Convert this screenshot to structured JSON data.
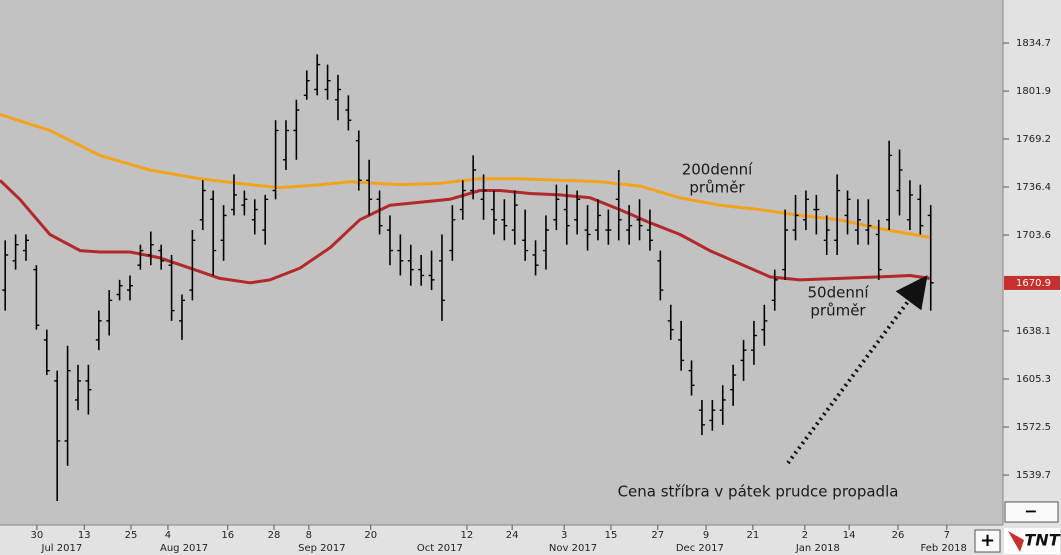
{
  "chart_data": {
    "type": "ohlc",
    "bar_color": "#000000",
    "xlim": [
      -1,
      191.9
    ],
    "ylim": [
      1505.6,
      1864.1
    ],
    "yticks": [
      1834.7,
      1801.9,
      1769.2,
      1736.4,
      1703.6,
      1638.1,
      1605.3,
      1572.5,
      1539.7
    ],
    "last_price": 1670.9,
    "last_price_color": "#c8302e",
    "xticks": [
      {
        "value": 6.1,
        "label": "30"
      },
      {
        "value": 15.2,
        "label": "13"
      },
      {
        "value": 24.2,
        "label": "25"
      },
      {
        "value": 31.3,
        "label": "4"
      },
      {
        "value": 42.8,
        "label": "16"
      },
      {
        "value": 51.7,
        "label": "28"
      },
      {
        "value": 58.4,
        "label": "8"
      },
      {
        "value": 70.3,
        "label": "20"
      },
      {
        "value": 88.8,
        "label": "12"
      },
      {
        "value": 97.5,
        "label": "24"
      },
      {
        "value": 107.5,
        "label": "3"
      },
      {
        "value": 116.5,
        "label": "15"
      },
      {
        "value": 125.5,
        "label": "27"
      },
      {
        "value": 134.8,
        "label": "9"
      },
      {
        "value": 143.8,
        "label": "21"
      },
      {
        "value": 153.8,
        "label": "2"
      },
      {
        "value": 162.3,
        "label": "14"
      },
      {
        "value": 171.7,
        "label": "26"
      },
      {
        "value": 181.1,
        "label": "7"
      }
    ],
    "xticks_months": [
      {
        "value": 10.9,
        "label": "Jul 2017"
      },
      {
        "value": 34.4,
        "label": "Aug 2017"
      },
      {
        "value": 60.9,
        "label": "Sep 2017"
      },
      {
        "value": 83.6,
        "label": "Oct 2017"
      },
      {
        "value": 109.2,
        "label": "Nov 2017"
      },
      {
        "value": 133.6,
        "label": "Dec 2017"
      },
      {
        "value": 156.3,
        "label": "Jan 2018"
      },
      {
        "value": 180.5,
        "label": "Feb 2018"
      }
    ],
    "ohlc": {
      "x": [
        0,
        2,
        4,
        6,
        8,
        10,
        12,
        14,
        16,
        18,
        20,
        22,
        24,
        26,
        28,
        30,
        32,
        34,
        36,
        38,
        40,
        42,
        44,
        46,
        48,
        50,
        52,
        54,
        56,
        58,
        60,
        62,
        64,
        66,
        68,
        70,
        72,
        74,
        76,
        78,
        80,
        82,
        84,
        86,
        88,
        90,
        92,
        94,
        96,
        98,
        100,
        102,
        104,
        106,
        108,
        110,
        112,
        114,
        116,
        118,
        120,
        122,
        124,
        126,
        128,
        130,
        132,
        134,
        136,
        138,
        140,
        142,
        144,
        146,
        148,
        150,
        152,
        154,
        156,
        158,
        160,
        162,
        164,
        166,
        168,
        170,
        172,
        174,
        176,
        178
      ],
      "open": [
        1666,
        1686,
        1693,
        1680,
        1632,
        1604,
        1563,
        1591,
        1604,
        1632,
        1645,
        1663,
        1666,
        1683,
        1690,
        1693,
        1683,
        1645,
        1666,
        1714,
        1728,
        1700,
        1721,
        1724,
        1714,
        1707,
        1734,
        1755,
        1775,
        1799,
        1803,
        1803,
        1796,
        1789,
        1768,
        1741,
        1728,
        1707,
        1693,
        1686,
        1680,
        1676,
        1686,
        1693,
        1721,
        1734,
        1728,
        1721,
        1714,
        1707,
        1700,
        1690,
        1693,
        1714,
        1721,
        1714,
        1707,
        1707,
        1707,
        1728,
        1707,
        1714,
        1707,
        1686,
        1645,
        1632,
        1611,
        1584,
        1577,
        1584,
        1598,
        1618,
        1625,
        1639,
        1659,
        1680,
        1707,
        1714,
        1721,
        1700,
        1700,
        1717,
        1707,
        1707,
        1704,
        1714,
        1734,
        1714,
        1728,
        1717
      ],
      "high": [
        1700,
        1704,
        1704,
        1683,
        1639,
        1611,
        1628,
        1615,
        1615,
        1652,
        1666,
        1673,
        1676,
        1697,
        1706,
        1697,
        1690,
        1663,
        1707,
        1741,
        1734,
        1724,
        1745,
        1734,
        1728,
        1731,
        1782,
        1782,
        1796,
        1816,
        1827,
        1820,
        1813,
        1799,
        1775,
        1755,
        1734,
        1717,
        1704,
        1697,
        1690,
        1693,
        1704,
        1724,
        1741,
        1758,
        1745,
        1734,
        1728,
        1734,
        1721,
        1700,
        1717,
        1738,
        1738,
        1734,
        1724,
        1728,
        1721,
        1748,
        1724,
        1728,
        1721,
        1693,
        1656,
        1645,
        1618,
        1591,
        1591,
        1601,
        1615,
        1632,
        1645,
        1656,
        1680,
        1721,
        1731,
        1734,
        1731,
        1717,
        1745,
        1734,
        1728,
        1728,
        1714,
        1768,
        1762,
        1741,
        1738,
        1724
      ],
      "low": [
        1652,
        1680,
        1686,
        1639,
        1608,
        1522,
        1546,
        1584,
        1581,
        1625,
        1635,
        1659,
        1659,
        1680,
        1683,
        1680,
        1645,
        1632,
        1659,
        1707,
        1676,
        1686,
        1717,
        1717,
        1704,
        1697,
        1728,
        1748,
        1755,
        1796,
        1799,
        1796,
        1782,
        1775,
        1734,
        1717,
        1704,
        1683,
        1676,
        1669,
        1669,
        1666,
        1645,
        1686,
        1714,
        1728,
        1714,
        1704,
        1700,
        1697,
        1686,
        1676,
        1680,
        1707,
        1697,
        1704,
        1693,
        1700,
        1697,
        1700,
        1697,
        1700,
        1693,
        1659,
        1632,
        1611,
        1594,
        1567,
        1570,
        1574,
        1587,
        1604,
        1615,
        1628,
        1652,
        1673,
        1700,
        1707,
        1704,
        1690,
        1690,
        1704,
        1697,
        1697,
        1673,
        1707,
        1717,
        1707,
        1704,
        1652
      ],
      "close": [
        1690,
        1697,
        1700,
        1642,
        1611,
        1563,
        1611,
        1604,
        1598,
        1645,
        1659,
        1669,
        1669,
        1693,
        1697,
        1686,
        1652,
        1659,
        1700,
        1734,
        1693,
        1717,
        1731,
        1728,
        1721,
        1728,
        1775,
        1775,
        1789,
        1809,
        1820,
        1809,
        1803,
        1782,
        1741,
        1728,
        1710,
        1693,
        1686,
        1680,
        1676,
        1673,
        1659,
        1714,
        1734,
        1748,
        1734,
        1714,
        1710,
        1724,
        1693,
        1683,
        1707,
        1728,
        1710,
        1728,
        1704,
        1717,
        1707,
        1714,
        1710,
        1710,
        1700,
        1666,
        1639,
        1618,
        1601,
        1574,
        1584,
        1591,
        1608,
        1625,
        1635,
        1645,
        1673,
        1707,
        1717,
        1728,
        1721,
        1707,
        1734,
        1728,
        1714,
        1710,
        1680,
        1758,
        1748,
        1731,
        1710,
        1671
      ]
    },
    "lines": [
      {
        "color": "#f5a21b",
        "x": [
          -1,
          8.6,
          18.2,
          27.8,
          37.5,
          47.1,
          52.8,
          60.5,
          66.3,
          75.9,
          83.6,
          91.3,
          99,
          106.7,
          114.4,
          122.1,
          129.8,
          137.5,
          145.2,
          152.8,
          160.5,
          168.2,
          177.8
        ],
        "values": [
          1786,
          1775,
          1758,
          1748,
          1742,
          1738,
          1736,
          1738,
          1740,
          1738,
          1739,
          1742,
          1742,
          1741,
          1740,
          1737,
          1729,
          1724,
          1721,
          1717,
          1714,
          1708,
          1702
        ]
      },
      {
        "color": "#b3282b",
        "x": [
          -1,
          2.8,
          8.6,
          14.4,
          18.2,
          24,
          29.8,
          35.5,
          41.3,
          47.1,
          50.9,
          56.7,
          62.5,
          68.2,
          74,
          79.8,
          85.5,
          91.3,
          95.2,
          100.9,
          106.7,
          112.5,
          118.2,
          124,
          129.8,
          135.5,
          141.3,
          147.1,
          152.8,
          160.5,
          168.2,
          174,
          177.8
        ],
        "values": [
          1741,
          1728,
          1704,
          1693,
          1692,
          1692,
          1688,
          1681,
          1674,
          1671,
          1673,
          1681,
          1695,
          1714,
          1724,
          1726,
          1728,
          1734,
          1734,
          1732,
          1731,
          1729,
          1721,
          1712,
          1704,
          1693,
          1684,
          1675,
          1673,
          1674,
          1675,
          1676,
          1674
        ]
      }
    ],
    "annotations": [
      {
        "lines": [
          "200denní",
          "průměr"
        ]
      },
      {
        "lines": [
          "50denní",
          "průměr"
        ]
      },
      {
        "lines": [
          "Cena stříbra v pátek prudce propadla"
        ]
      }
    ]
  },
  "controls": {
    "zoom_out": "−",
    "zoom_in": "+",
    "logo": "TNT"
  }
}
